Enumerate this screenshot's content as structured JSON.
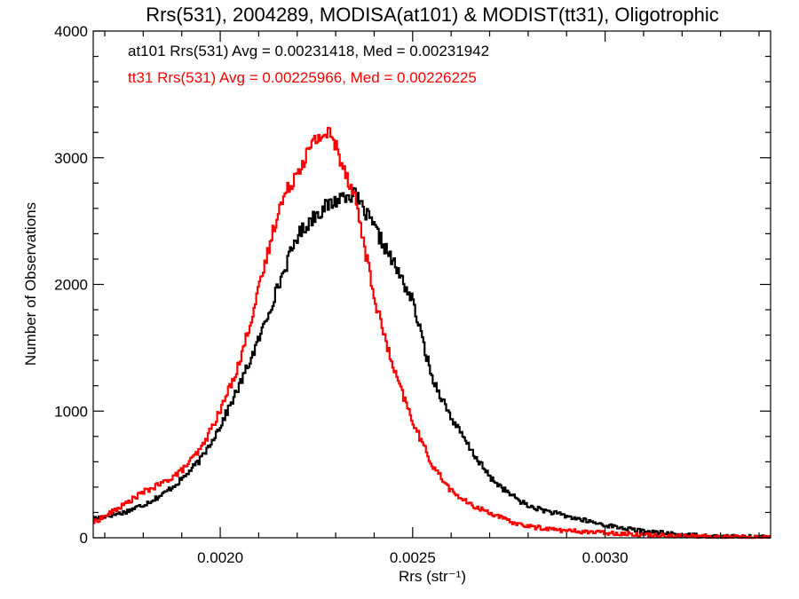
{
  "chart_data": {
    "type": "line",
    "title": "Rrs(531), 2004289, MODISA(at101) & MODIST(tt31), Oligotrophic",
    "xlabel": "Rrs (str⁻¹)",
    "ylabel": "Number of Observations",
    "xlim": [
      0.00167,
      0.00343
    ],
    "ylim": [
      0,
      4000
    ],
    "xticks": [
      0.002,
      0.0025,
      0.003
    ],
    "xtick_labels": [
      "0.0020",
      "0.0025",
      "0.0030"
    ],
    "yticks": [
      0,
      1000,
      2000,
      3000,
      4000
    ],
    "ytick_labels": [
      "0",
      "1000",
      "2000",
      "3000",
      "4000"
    ],
    "grid": false,
    "legend_position": "top-left",
    "series": [
      {
        "name": "at101",
        "label": "at101 Rrs(531) Avg = 0.00231418, Med = 0.00231942",
        "color": "#000000",
        "x": [
          0.00167,
          0.0017,
          0.00175,
          0.0018,
          0.00185,
          0.0019,
          0.00195,
          0.002,
          0.00205,
          0.0021,
          0.00215,
          0.0022,
          0.00225,
          0.0023,
          0.00233,
          0.00235,
          0.0024,
          0.00245,
          0.0025,
          0.00255,
          0.0026,
          0.00265,
          0.0027,
          0.00275,
          0.0028,
          0.00285,
          0.0029,
          0.003,
          0.0031,
          0.0032,
          0.0033,
          0.00343
        ],
        "y": [
          150,
          170,
          200,
          260,
          340,
          460,
          620,
          880,
          1200,
          1560,
          1980,
          2380,
          2560,
          2660,
          2720,
          2700,
          2450,
          2170,
          1870,
          1270,
          950,
          700,
          480,
          350,
          250,
          210,
          170,
          100,
          50,
          25,
          10,
          5
        ]
      },
      {
        "name": "tt31",
        "label": "tt31 Rrs(531) Avg = 0.00225966, Med = 0.00226225",
        "color": "#ff0000",
        "x": [
          0.00167,
          0.0017,
          0.00175,
          0.0018,
          0.00185,
          0.0019,
          0.00195,
          0.002,
          0.00205,
          0.0021,
          0.00215,
          0.0022,
          0.00225,
          0.00228,
          0.0023,
          0.00235,
          0.0024,
          0.00245,
          0.0025,
          0.00255,
          0.0026,
          0.00265,
          0.0027,
          0.00275,
          0.0028,
          0.0029,
          0.003,
          0.0031,
          0.0032,
          0.0033,
          0.00343
        ],
        "y": [
          120,
          170,
          260,
          360,
          430,
          530,
          700,
          1000,
          1380,
          1950,
          2580,
          2900,
          3150,
          3200,
          3100,
          2700,
          1900,
          1330,
          920,
          580,
          370,
          260,
          200,
          130,
          90,
          55,
          40,
          25,
          15,
          8,
          4
        ]
      }
    ]
  }
}
